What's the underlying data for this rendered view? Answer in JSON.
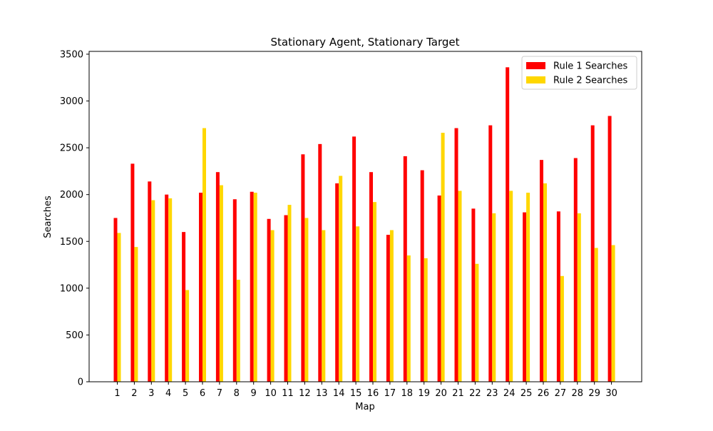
{
  "chart_data": {
    "type": "bar",
    "title": "Stationary Agent, Stationary Target",
    "xlabel": "Map",
    "ylabel": "Searches",
    "categories": [
      "1",
      "2",
      "3",
      "4",
      "5",
      "6",
      "7",
      "8",
      "9",
      "10",
      "11",
      "12",
      "13",
      "14",
      "15",
      "16",
      "17",
      "18",
      "19",
      "20",
      "21",
      "22",
      "23",
      "24",
      "25",
      "26",
      "27",
      "28",
      "29",
      "30"
    ],
    "series": [
      {
        "name": "Rule 1 Searches",
        "color": "#ff0000",
        "values": [
          1750,
          2330,
          2140,
          2000,
          1600,
          2020,
          2240,
          1950,
          2030,
          1740,
          1780,
          2430,
          2540,
          2120,
          2620,
          2240,
          1570,
          2410,
          2260,
          1990,
          2710,
          1850,
          2740,
          3360,
          1810,
          2370,
          1820,
          2390,
          2740,
          2840
        ]
      },
      {
        "name": "Rule 2 Searches",
        "color": "#ffd700",
        "values": [
          1590,
          1440,
          1940,
          1960,
          980,
          2710,
          2100,
          1090,
          2020,
          1620,
          1890,
          1750,
          1620,
          2200,
          1660,
          1920,
          1620,
          1350,
          1320,
          2660,
          2040,
          1260,
          1800,
          2040,
          2020,
          2120,
          1130,
          1800,
          1430,
          1460
        ]
      }
    ],
    "yticks": [
      "0",
      "500",
      "1000",
      "1500",
      "2000",
      "2500",
      "3000",
      "3500"
    ],
    "ylim": [
      0,
      3530
    ],
    "legend": "top-right",
    "grid": false
  }
}
